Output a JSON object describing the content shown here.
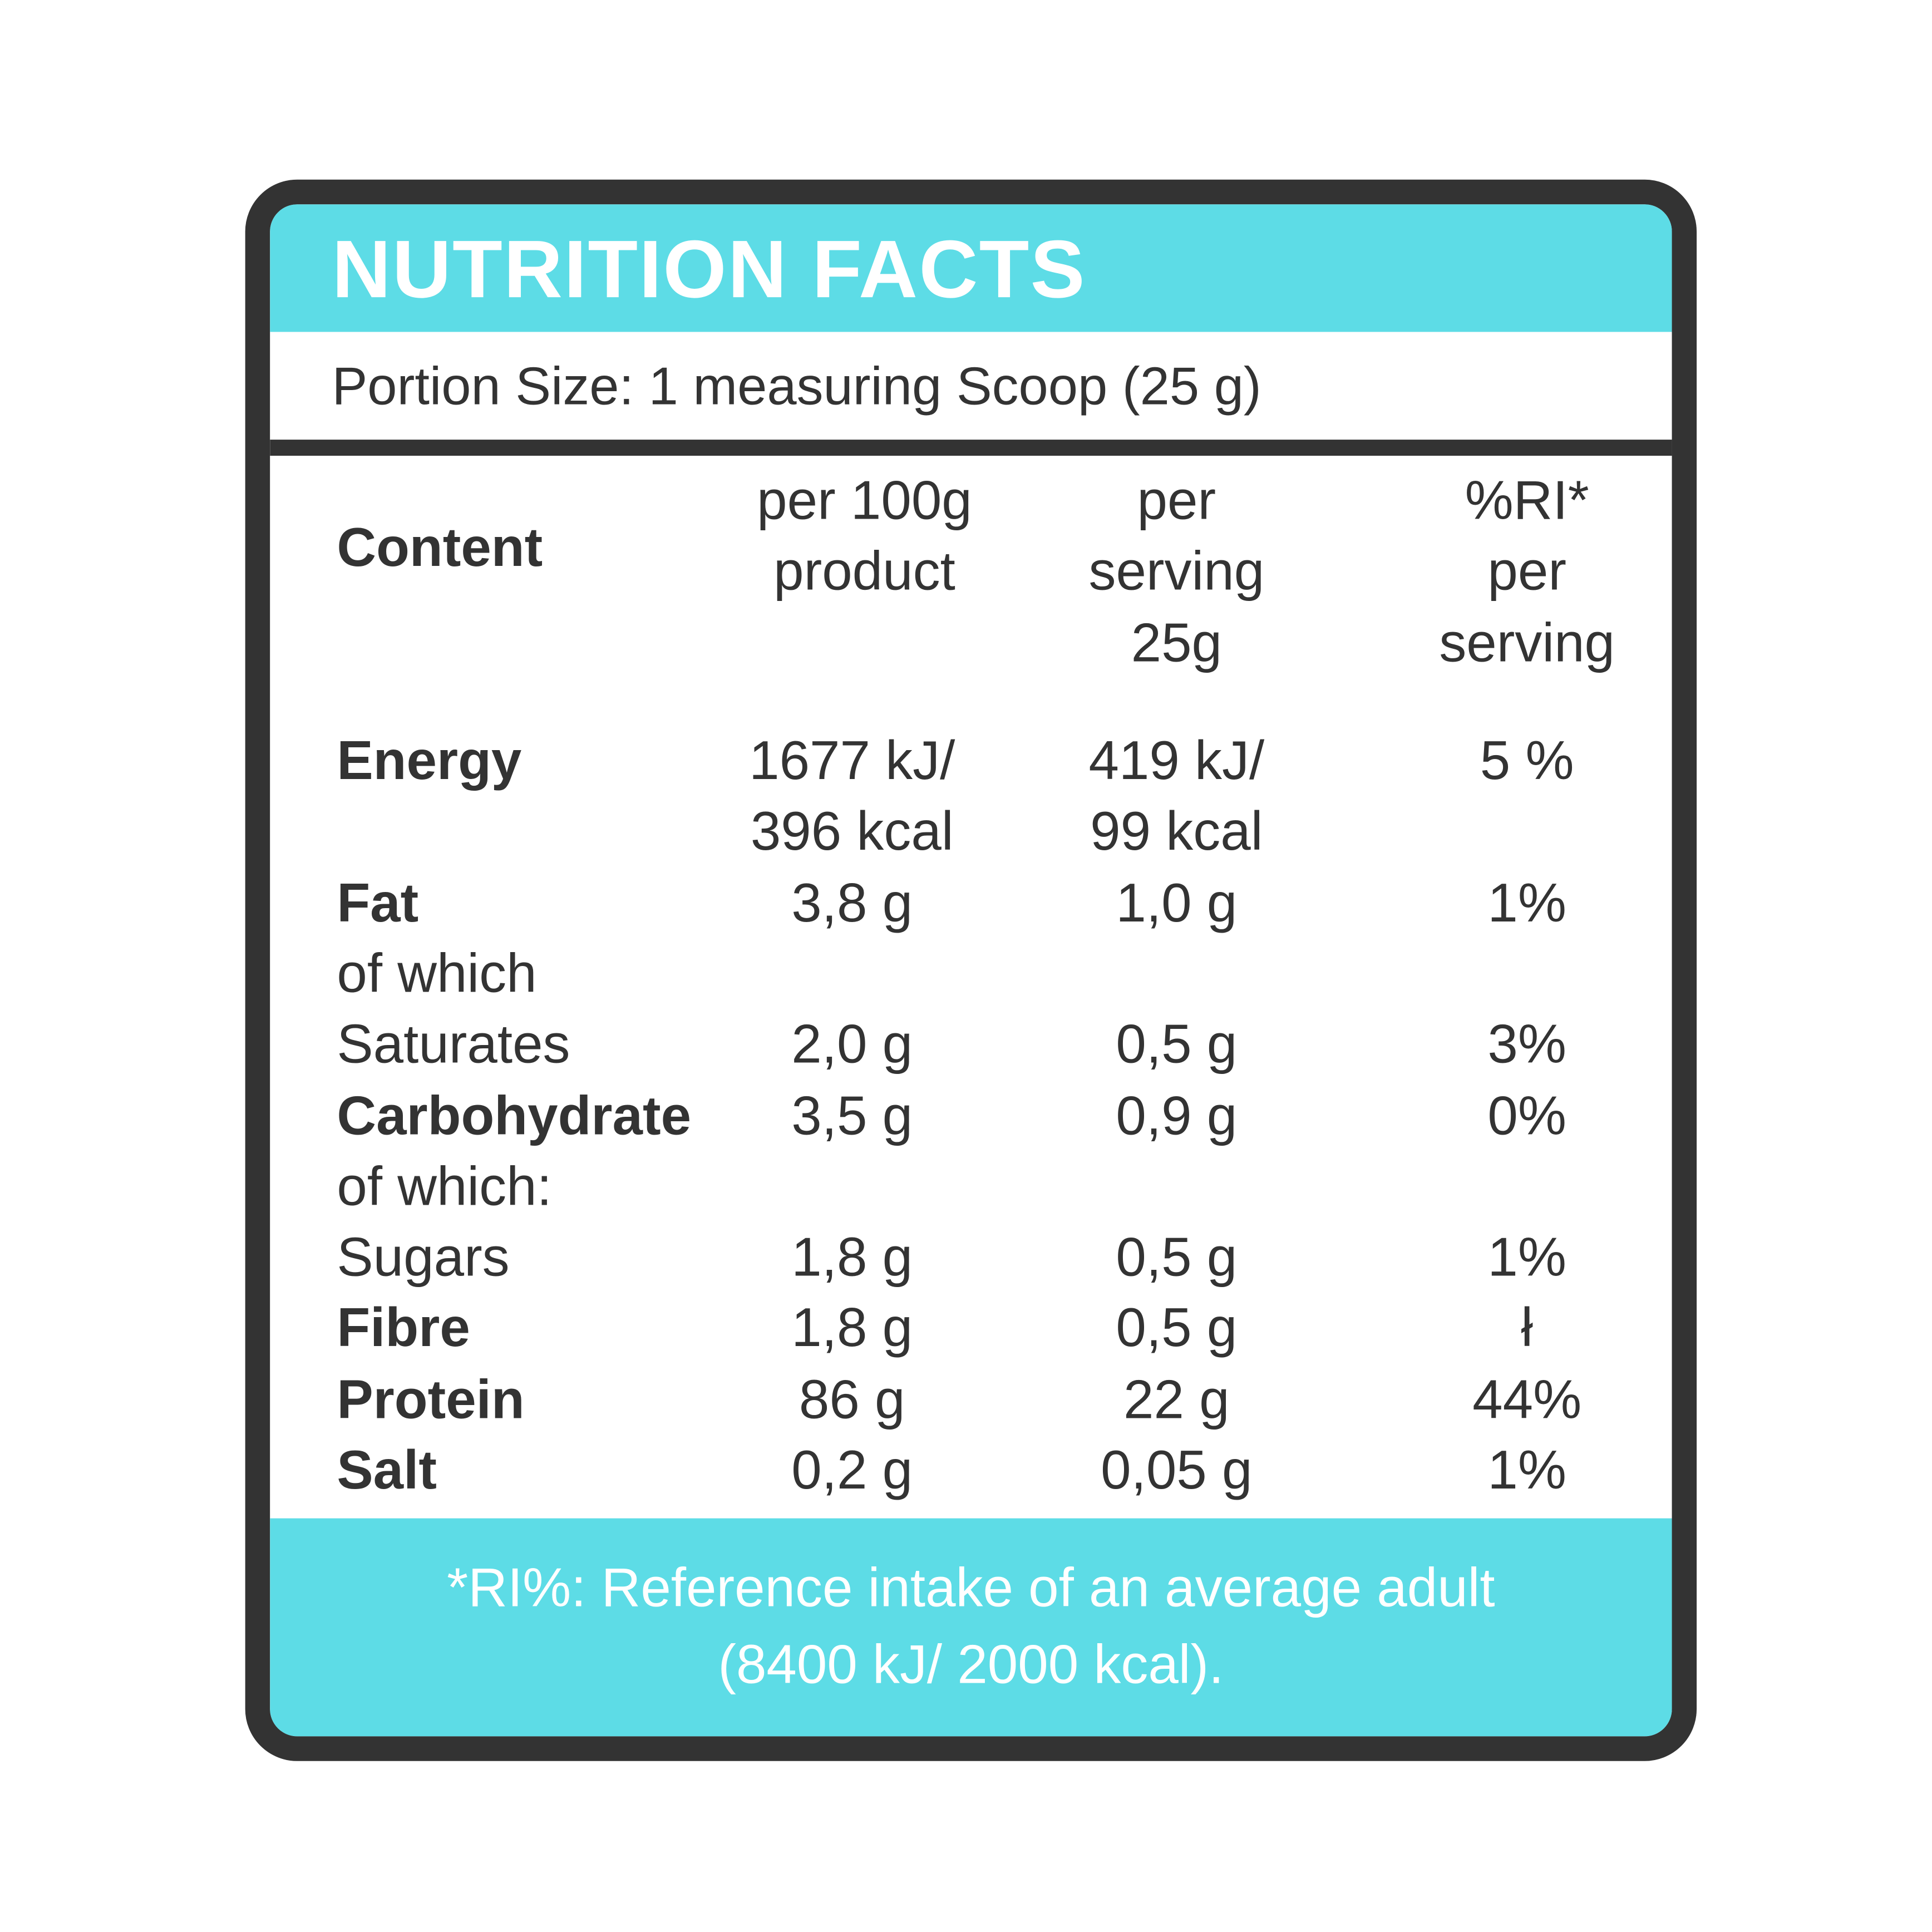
{
  "title": "NUTRITION FACTS",
  "portion": "Portion Size: 1 measuring Scoop (25 g)",
  "table": {
    "header": [
      "Content",
      [
        "per 100g",
        "product"
      ],
      [
        "per",
        "serving",
        "25g"
      ],
      [
        "%RI*",
        "per",
        "serving"
      ]
    ],
    "rows": [
      {
        "bold": true,
        "cells": [
          "Energy",
          [
            "1677 kJ/",
            "396 kcal"
          ],
          [
            "419 kJ/",
            "99 kcal"
          ],
          "5 %"
        ]
      },
      {
        "bold": true,
        "cells": [
          "Fat",
          "3,8 g",
          "1,0 g",
          "1%"
        ]
      },
      {
        "bold": false,
        "cells": [
          "of which"
        ]
      },
      {
        "bold": false,
        "cells": [
          "Saturates",
          "2,0 g",
          "0,5 g",
          "3%"
        ]
      },
      {
        "bold": true,
        "cells": [
          "Carbohydrate",
          "3,5 g",
          "0,9 g",
          "0%"
        ]
      },
      {
        "bold": false,
        "cells": [
          "of which:"
        ]
      },
      {
        "bold": false,
        "cells": [
          "Sugars",
          "1,8 g",
          "0,5 g",
          "1%"
        ]
      },
      {
        "bold": true,
        "cells": [
          "Fibre",
          "1,8 g",
          "0,5 g",
          "ł"
        ]
      },
      {
        "bold": true,
        "cells": [
          "Protein",
          "86 g",
          "22 g",
          "44%"
        ]
      },
      {
        "bold": true,
        "cells": [
          "Salt",
          "0,2 g",
          "0,05 g",
          "1%"
        ]
      }
    ]
  },
  "footnote": [
    "*RI%: Reference intake of an average adult",
    "(8400 kJ/ 2000 kcal)."
  ]
}
